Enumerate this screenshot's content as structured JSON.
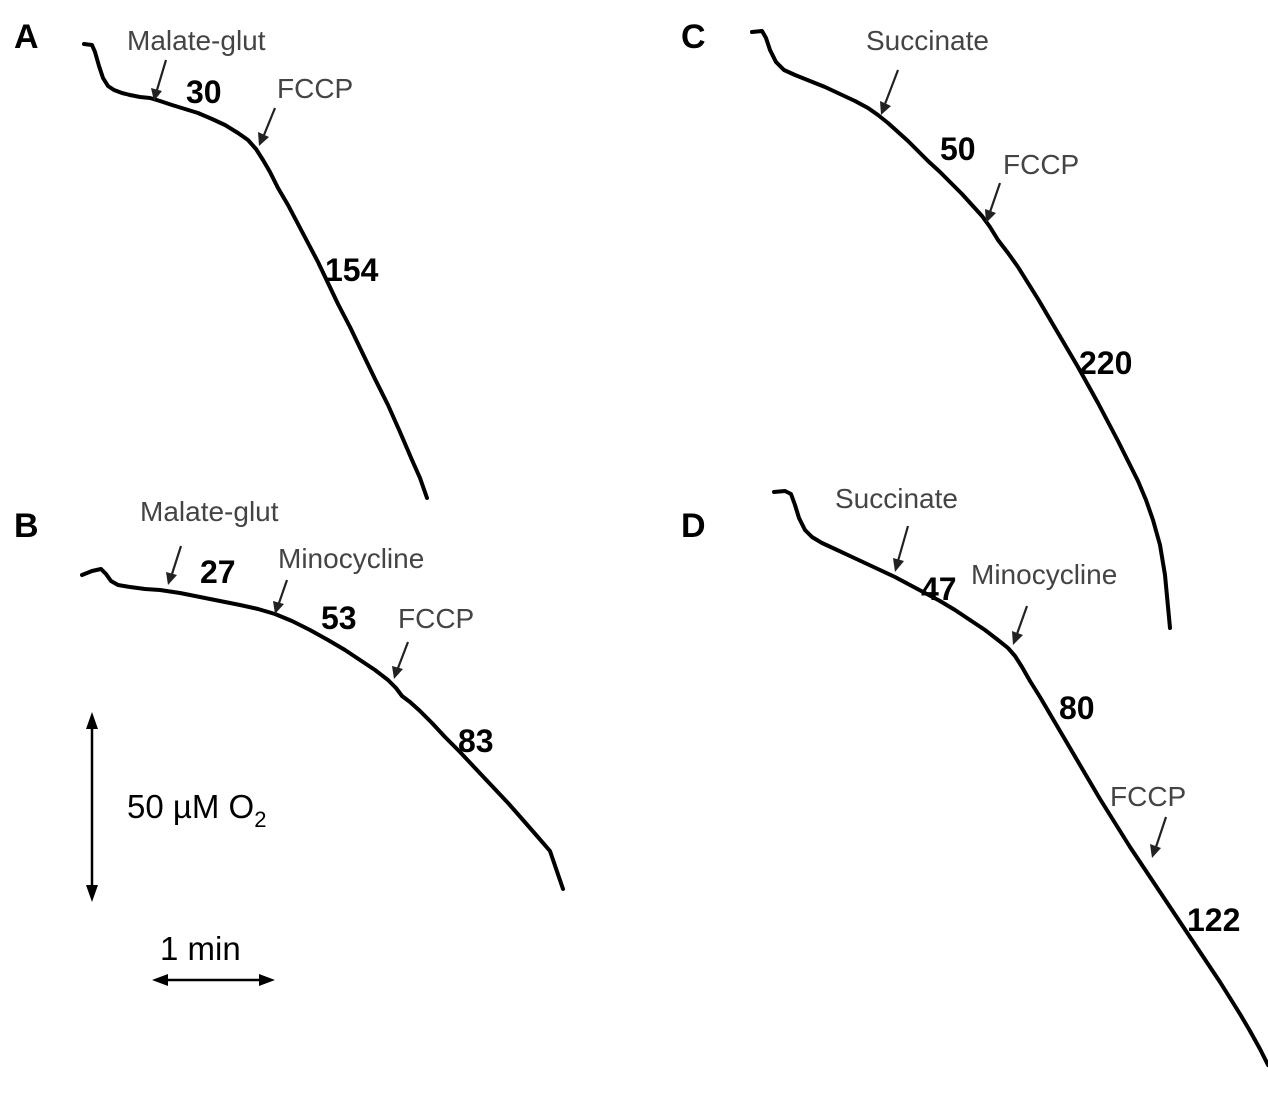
{
  "chart_data": [
    {
      "type": "line",
      "panel": "A",
      "annotations": [
        "Malate-glut",
        "FCCP"
      ],
      "rates": [
        "30",
        "154"
      ]
    },
    {
      "type": "line",
      "panel": "B",
      "annotations": [
        "Malate-glut",
        "Minocycline",
        "FCCP"
      ],
      "rates": [
        "27",
        "53",
        "83"
      ]
    },
    {
      "type": "line",
      "panel": "C",
      "annotations": [
        "Succinate",
        "FCCP"
      ],
      "rates": [
        "50",
        "220"
      ]
    },
    {
      "type": "line",
      "panel": "D",
      "annotations": [
        "Succinate",
        "Minocycline",
        "FCCP"
      ],
      "rates": [
        "47",
        "80",
        "122"
      ]
    }
  ],
  "scale_bar": {
    "vertical_label": "50 µM O",
    "vertical_subscript": "2",
    "horizontal_label": "1 min"
  }
}
